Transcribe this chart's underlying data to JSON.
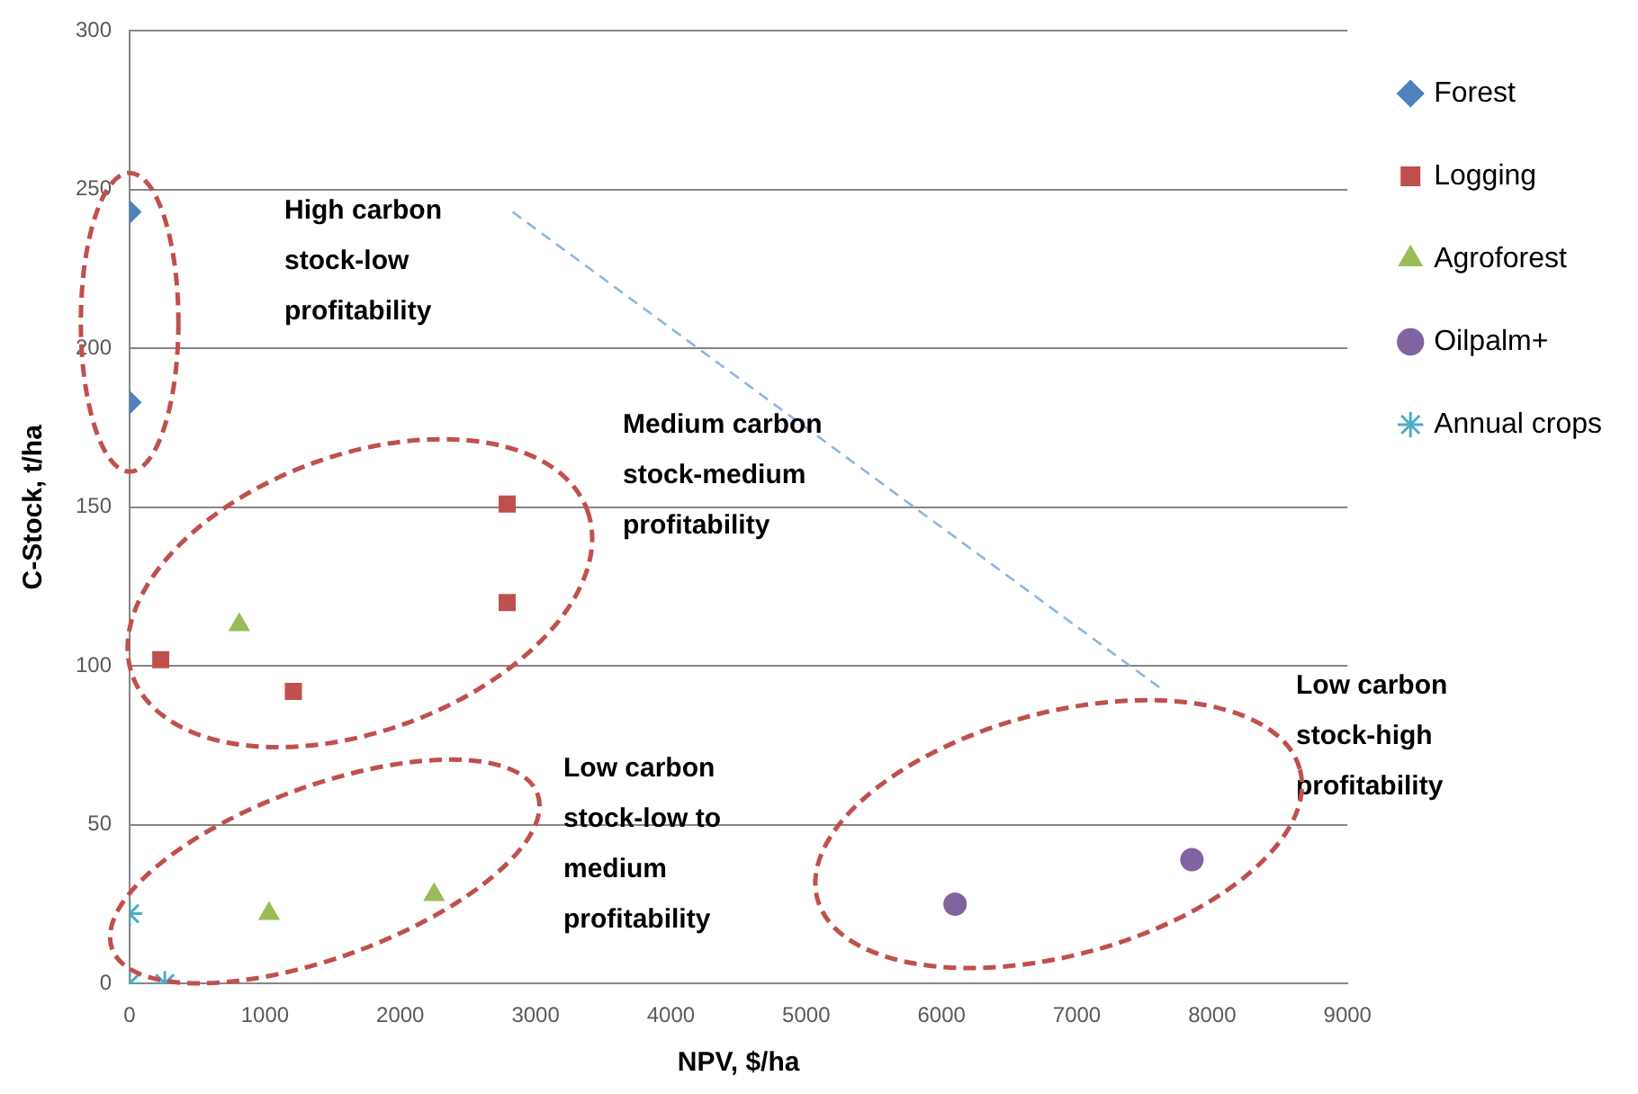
{
  "chart_data": {
    "type": "scatter",
    "xlabel": "NPV, $/ha",
    "ylabel": "C-Stock, t/ha",
    "xlim": [
      0,
      9000
    ],
    "xticks": [
      0,
      1000,
      2000,
      3000,
      4000,
      5000,
      6000,
      7000,
      8000,
      9000
    ],
    "ylim": [
      0,
      300
    ],
    "yticks": [
      0,
      50,
      100,
      150,
      200,
      250,
      300
    ],
    "grid": "y",
    "legend": "right",
    "series": [
      {
        "name": "Forest",
        "color": "#4f81bd",
        "marker": "diamond",
        "x": [
          0,
          0
        ],
        "values": [
          243,
          183
        ]
      },
      {
        "name": "Logging",
        "color": "#c0504d",
        "marker": "square",
        "x": [
          230,
          1210,
          2790,
          2790
        ],
        "values": [
          102,
          92,
          151,
          120
        ]
      },
      {
        "name": "Agroforest",
        "color": "#9bbb59",
        "marker": "triangle",
        "x": [
          810,
          1030,
          2250
        ],
        "values": [
          113,
          22,
          28
        ]
      },
      {
        "name": "Oilpalm+",
        "color": "#8064a2",
        "marker": "circle",
        "x": [
          6100,
          7850
        ],
        "values": [
          25,
          39
        ]
      },
      {
        "name": "Annual crops",
        "color": "#4bacc6",
        "marker": "cross",
        "x": [
          0,
          0,
          260
        ],
        "values": [
          22,
          0,
          0
        ]
      },
      {
        "type": "line",
        "color": "#8eb4e3",
        "marker": "none",
        "line_style": "dashed",
        "x": [
          2830,
          7650
        ],
        "values": [
          243,
          92
        ]
      }
    ],
    "annotations": [
      "High carbon stock-low profitability",
      "Medium carbon stock-medium profitability",
      "Low carbon stock-low to medium profitability",
      "Low carbon stock-high profitability"
    ]
  }
}
